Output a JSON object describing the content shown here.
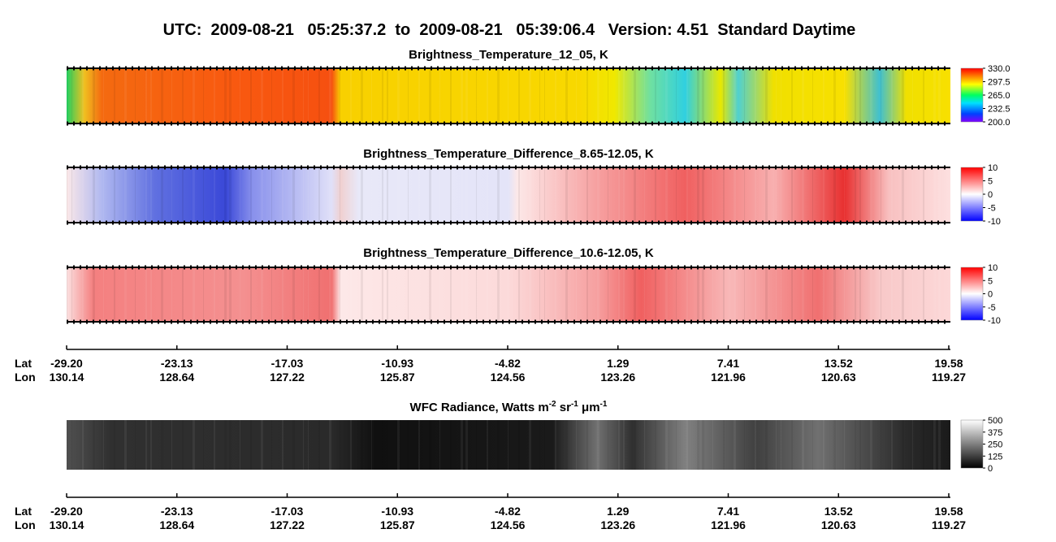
{
  "header": {
    "title": "UTC:  2009-08-21   05:25:37.2  to  2009-08-21   05:39:06.4   Version: 4.51  Standard Daytime"
  },
  "panels": [
    {
      "title": "Brightness_Temperature_12_05, K",
      "colorbar_labels": [
        "330.0",
        "297.5",
        "265.0",
        "232.5",
        "200.0"
      ]
    },
    {
      "title": "Brightness_Temperature_Difference_8.65-12.05, K",
      "colorbar_labels": [
        "10",
        "5",
        "0",
        "-5",
        "-10"
      ]
    },
    {
      "title": "Brightness_Temperature_Difference_10.6-12.05, K",
      "colorbar_labels": [
        "10",
        "5",
        "0",
        "-5",
        "-10"
      ]
    },
    {
      "title_parts": [
        "WFC Radiance, Watts m",
        "-2",
        " sr",
        "-1",
        " μm",
        "-1"
      ],
      "colorbar_labels": [
        "500",
        "375",
        "250",
        "125",
        "0"
      ]
    }
  ],
  "axis": {
    "lat_label": "Lat",
    "lon_label": "Lon",
    "lat": [
      "-29.20",
      "-23.13",
      "-17.03",
      "-10.93",
      "-4.82",
      "1.29",
      "7.41",
      "13.52",
      "19.58"
    ],
    "lon": [
      "130.14",
      "128.64",
      "127.22",
      "125.87",
      "124.56",
      "123.26",
      "121.96",
      "120.63",
      "119.27"
    ]
  }
}
